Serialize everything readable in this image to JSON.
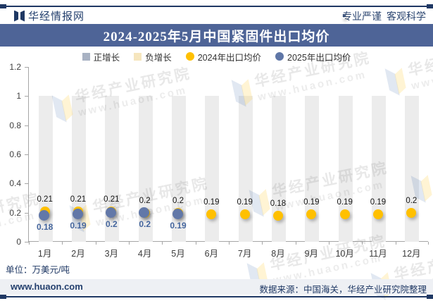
{
  "header": {
    "brand": "华经情报网",
    "slogan_left": "专业严谨",
    "slogan_separator": "●",
    "slogan_right": "客观科学"
  },
  "title": "2024-2025年5月中国紧固件出口均价",
  "legend": [
    {
      "label": "正增长",
      "marker": "square",
      "color": "#A8B2C3"
    },
    {
      "label": "负增长",
      "marker": "square",
      "color": "#F6E6BE"
    },
    {
      "label": "2024年出口均价",
      "marker": "circle",
      "color": "#FFC000"
    },
    {
      "label": "2025年出口均价",
      "marker": "circle",
      "color": "#5F76A7"
    }
  ],
  "chart_data": {
    "type": "bar",
    "title": "2024-2025年5月中国紧固件出口均价",
    "categories": [
      "1月",
      "2月",
      "3月",
      "4月",
      "5月",
      "6月",
      "7月",
      "8月",
      "9月",
      "10月",
      "11月",
      "12月"
    ],
    "series": [
      {
        "name": "正增长",
        "type": "bar",
        "color": "#ECECEC",
        "values": [
          1,
          1,
          1,
          1,
          1,
          1,
          1,
          1,
          1,
          1,
          1,
          1
        ]
      },
      {
        "name": "2024年出口均价",
        "type": "scatter",
        "color": "#FFC000",
        "values": [
          0.21,
          0.21,
          0.21,
          0.2,
          0.2,
          0.19,
          0.19,
          0.18,
          0.19,
          0.19,
          0.19,
          0.2
        ]
      },
      {
        "name": "2025年出口均价",
        "type": "scatter",
        "color": "#6278A8",
        "values": [
          0.18,
          0.19,
          0.2,
          0.2,
          0.19,
          null,
          null,
          null,
          null,
          null,
          null,
          null
        ]
      }
    ],
    "xlabel": "",
    "ylabel": "",
    "ylim": [
      0,
      1.2
    ],
    "yticks": [
      0,
      0.2,
      0.4,
      0.6,
      0.8,
      1,
      1.2
    ],
    "grid": false,
    "legend_position": "top",
    "unit": "万美元/吨"
  },
  "unit_note": "单位：万美元/吨",
  "footer": {
    "site": "www.huaon.com",
    "source": "数据来源：中国海关，华经产业研究院整理"
  },
  "watermark": {
    "line1": "华经产业研究院",
    "line2": "www.huaon.com"
  },
  "colors": {
    "navy": "#1F3864",
    "title_bar": "#4E6497",
    "bar": "#ECECEC",
    "dot_2024": "#FFC000",
    "dot_2025": "#6278A8",
    "value_label_2025": "#44659D",
    "footer_band": "#EEF0F4"
  }
}
